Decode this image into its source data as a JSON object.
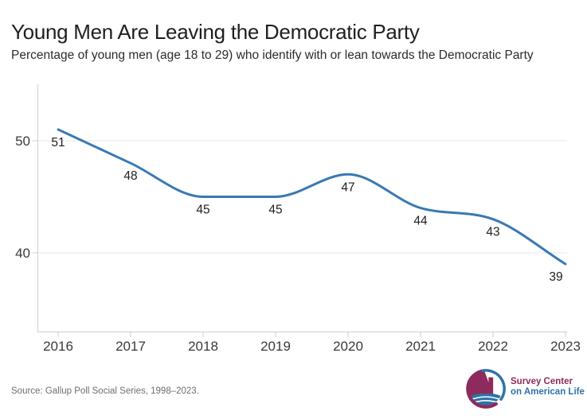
{
  "header": {
    "title": "Young Men Are Leaving the Democratic Party",
    "subtitle": "Percentage of young men (age 18 to 29) who identify with or lean towards the Democratic Party"
  },
  "chart_data": {
    "type": "line",
    "categories": [
      "2016",
      "2017",
      "2018",
      "2019",
      "2020",
      "2021",
      "2022",
      "2023"
    ],
    "values": [
      51,
      48,
      45,
      45,
      47,
      44,
      43,
      39
    ],
    "series_name": "Young men identifying with or leaning towards the Democratic Party (%)",
    "title": "Young Men Are Leaving the Democratic Party",
    "xlabel": "",
    "ylabel": "",
    "yticks": [
      40,
      50
    ],
    "ylim": [
      33,
      55
    ],
    "grid": true,
    "data_labels": true,
    "legend": "none",
    "line_color": "#3879b4",
    "grid_color": "#e7e7e7",
    "axis_color": "#cfcfcf"
  },
  "footer": {
    "source": "Source: Gallup Poll Social Series, 1998–2023.",
    "logo": {
      "line1": "Survey Center",
      "line2": "on American Life",
      "color_primary": "#8e2a5c",
      "color_secondary": "#2e73a7"
    }
  }
}
